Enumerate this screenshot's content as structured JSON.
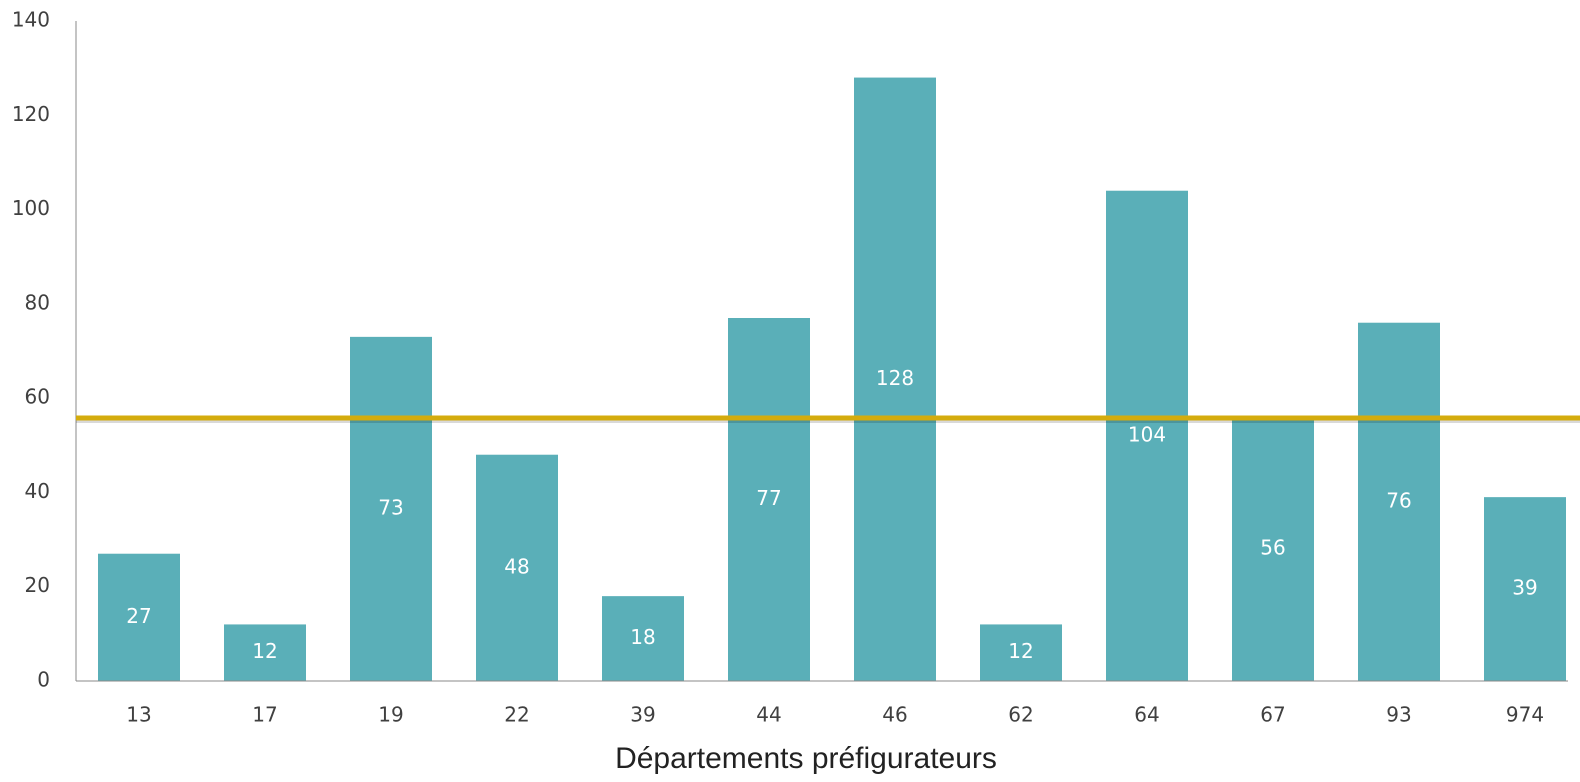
{
  "chart_data": {
    "type": "bar",
    "x_label": "Départements préfigurateurs",
    "categories": [
      "13",
      "17",
      "19",
      "22",
      "39",
      "44",
      "46",
      "62",
      "64",
      "67",
      "93",
      "974"
    ],
    "values": [
      27,
      12,
      73,
      48,
      18,
      77,
      128,
      12,
      104,
      56,
      76,
      39
    ],
    "color": "#5aafb8",
    "reference_line": {
      "value": 55.8,
      "color": "#d4ac0d"
    },
    "ylim": [
      0,
      140
    ],
    "yticks": [
      0,
      20,
      40,
      60,
      80,
      100,
      120,
      140
    ],
    "grid": false
  }
}
